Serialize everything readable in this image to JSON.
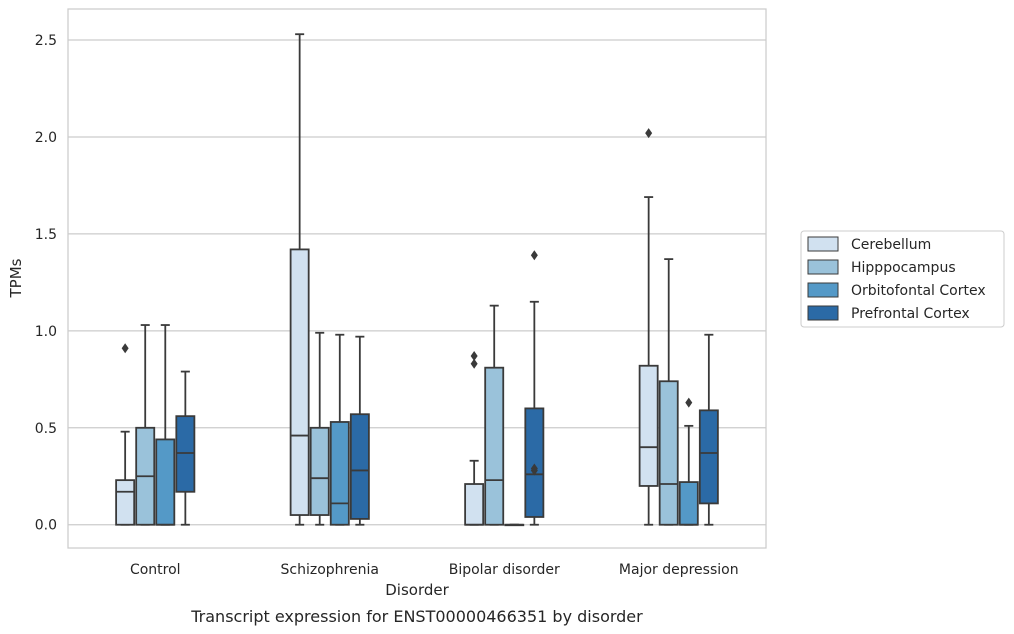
{
  "chart_data": {
    "type": "box",
    "xlabel": "Disorder",
    "ylabel": "TPMs",
    "caption": "Transcript expression for ENST00000466351 by disorder",
    "ylim": [
      -0.12,
      2.66
    ],
    "yticks": [
      0.0,
      0.5,
      1.0,
      1.5,
      2.0,
      2.5
    ],
    "ytick_labels": [
      "0.0",
      "0.5",
      "1.0",
      "1.5",
      "2.0",
      "2.5"
    ],
    "grid": "horizontal",
    "legend_position": "right",
    "categories": [
      "Control",
      "Schizophrenia",
      "Bipolar disorder",
      "Major depression"
    ],
    "series": [
      {
        "name": "Cerebellum",
        "color": "#d1e1f0",
        "boxes": [
          {
            "whisker_low": 0.0,
            "q1": 0.0,
            "median": 0.17,
            "q3": 0.23,
            "whisker_high": 0.48,
            "outliers": [
              0.91
            ]
          },
          {
            "whisker_low": 0.0,
            "q1": 0.05,
            "median": 0.46,
            "q3": 1.42,
            "whisker_high": 2.53,
            "outliers": []
          },
          {
            "whisker_low": 0.0,
            "q1": 0.0,
            "median": 0.0,
            "q3": 0.21,
            "whisker_high": 0.33,
            "outliers": [
              0.83,
              0.87
            ]
          },
          {
            "whisker_low": 0.0,
            "q1": 0.2,
            "median": 0.4,
            "q3": 0.82,
            "whisker_high": 1.69,
            "outliers": [
              2.02
            ]
          }
        ]
      },
      {
        "name": "Hipppocampus",
        "color": "#9ac2da",
        "boxes": [
          {
            "whisker_low": 0.0,
            "q1": 0.0,
            "median": 0.25,
            "q3": 0.5,
            "whisker_high": 1.03,
            "outliers": []
          },
          {
            "whisker_low": 0.0,
            "q1": 0.05,
            "median": 0.24,
            "q3": 0.5,
            "whisker_high": 0.99,
            "outliers": []
          },
          {
            "whisker_low": 0.0,
            "q1": 0.0,
            "median": 0.23,
            "q3": 0.81,
            "whisker_high": 1.13,
            "outliers": []
          },
          {
            "whisker_low": 0.0,
            "q1": 0.0,
            "median": 0.21,
            "q3": 0.74,
            "whisker_high": 1.37,
            "outliers": []
          }
        ]
      },
      {
        "name": "Orbitofontal Cortex",
        "color": "#5499c7",
        "boxes": [
          {
            "whisker_low": 0.0,
            "q1": 0.0,
            "median": 0.0,
            "q3": 0.44,
            "whisker_high": 1.03,
            "outliers": []
          },
          {
            "whisker_low": 0.0,
            "q1": 0.0,
            "median": 0.11,
            "q3": 0.53,
            "whisker_high": 0.98,
            "outliers": []
          },
          {
            "whisker_low": 0.0,
            "q1": 0.0,
            "median": 0.0,
            "q3": 0.0,
            "whisker_high": 0.0,
            "outliers": []
          },
          {
            "whisker_low": 0.0,
            "q1": 0.0,
            "median": 0.0,
            "q3": 0.22,
            "whisker_high": 0.51,
            "outliers": [
              0.63
            ]
          }
        ]
      },
      {
        "name": "Prefrontal Cortex",
        "color": "#2b6aa6",
        "boxes": [
          {
            "whisker_low": 0.0,
            "q1": 0.17,
            "median": 0.37,
            "q3": 0.56,
            "whisker_high": 0.79,
            "outliers": []
          },
          {
            "whisker_low": 0.0,
            "q1": 0.03,
            "median": 0.28,
            "q3": 0.57,
            "whisker_high": 0.97,
            "outliers": []
          },
          {
            "whisker_low": 0.0,
            "q1": 0.04,
            "median": 0.26,
            "q3": 0.6,
            "whisker_high": 1.15,
            "outliers": [
              0.28,
              0.29,
              1.39
            ]
          },
          {
            "whisker_low": 0.0,
            "q1": 0.11,
            "median": 0.37,
            "q3": 0.59,
            "whisker_high": 0.98,
            "outliers": []
          }
        ]
      }
    ]
  }
}
